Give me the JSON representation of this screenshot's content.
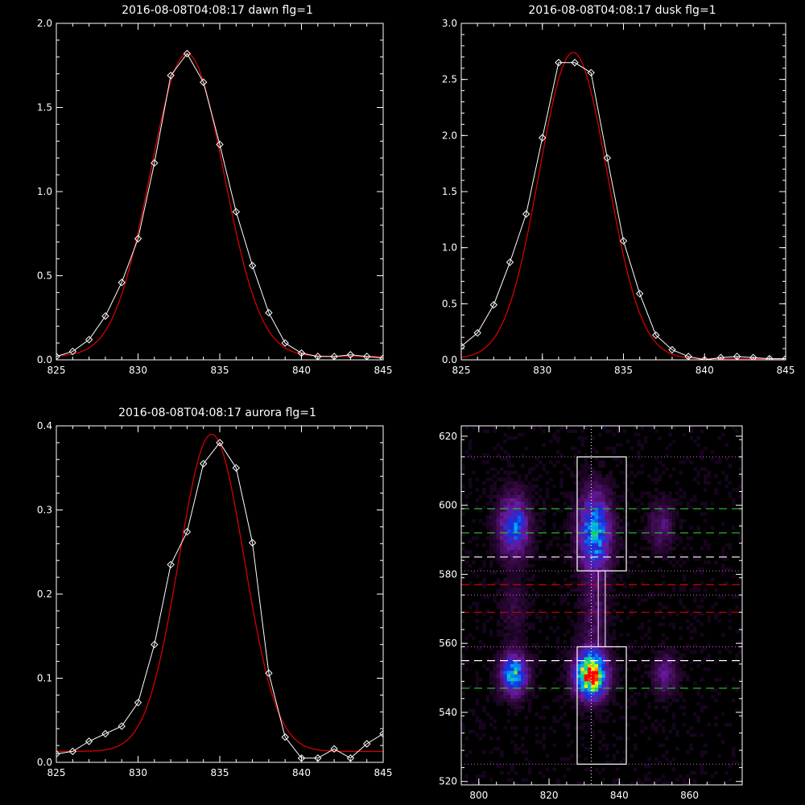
{
  "chart_data": [
    {
      "type": "line",
      "title": "2016-08-08T04:08:17 dawn flg=1",
      "xlim": [
        825,
        845
      ],
      "ylim": [
        0,
        2.0
      ],
      "xticks": [
        "825",
        "830",
        "835",
        "840",
        "845"
      ],
      "yticks": [
        "0.0",
        "0.5",
        "1.0",
        "1.5",
        "2.0"
      ],
      "series": [
        {
          "style": "measured",
          "color": "#ffffff",
          "marker": "diamond",
          "x": [
            825,
            826,
            827,
            828,
            829,
            830,
            831,
            832,
            833,
            834,
            835,
            836,
            837,
            838,
            839,
            840,
            841,
            842,
            843,
            844,
            845
          ],
          "y": [
            0.02,
            0.05,
            0.12,
            0.26,
            0.46,
            0.72,
            1.17,
            1.69,
            1.82,
            1.65,
            1.28,
            0.88,
            0.56,
            0.28,
            0.1,
            0.04,
            0.02,
            0.02,
            0.03,
            0.02,
            0.01
          ]
        },
        {
          "style": "fit",
          "color": "#d40000",
          "gauss": {
            "amp": 1.8,
            "center": 833.0,
            "sigma": 2.25,
            "base": 0.02
          }
        }
      ]
    },
    {
      "type": "line",
      "title": "2016-08-08T04:08:17 dusk flg=1",
      "xlim": [
        825,
        845
      ],
      "ylim": [
        0,
        3.0
      ],
      "xticks": [
        "825",
        "830",
        "835",
        "840",
        "845"
      ],
      "yticks": [
        "0.0",
        "0.5",
        "1.0",
        "1.5",
        "2.0",
        "2.5",
        "3.0"
      ],
      "series": [
        {
          "style": "measured",
          "color": "#ffffff",
          "marker": "diamond",
          "x": [
            825,
            826,
            827,
            828,
            829,
            830,
            831,
            832,
            833,
            834,
            835,
            836,
            837,
            838,
            839,
            840,
            841,
            842,
            843,
            844,
            845
          ],
          "y": [
            0.12,
            0.24,
            0.49,
            0.87,
            1.3,
            1.98,
            2.65,
            2.65,
            2.56,
            1.8,
            1.06,
            0.59,
            0.22,
            0.09,
            0.03,
            0.0,
            0.02,
            0.03,
            0.02,
            0.01,
            0.01
          ]
        },
        {
          "style": "fit",
          "color": "#d40000",
          "gauss": {
            "amp": 2.73,
            "center": 831.9,
            "sigma": 2.1,
            "base": 0.01
          }
        }
      ]
    },
    {
      "type": "line",
      "title": "2016-08-08T04:08:17 aurora flg=1",
      "xlim": [
        825,
        845
      ],
      "ylim": [
        0,
        0.4
      ],
      "xticks": [
        "825",
        "830",
        "835",
        "840",
        "845"
      ],
      "yticks": [
        "0.0",
        "0.1",
        "0.2",
        "0.3",
        "0.4"
      ],
      "series": [
        {
          "style": "measured",
          "color": "#ffffff",
          "marker": "diamond",
          "x": [
            825,
            826,
            827,
            828,
            829,
            830,
            831,
            832,
            833,
            834,
            835,
            836,
            837,
            838,
            839,
            840,
            841,
            842,
            843,
            844,
            845
          ],
          "y": [
            0.01,
            0.013,
            0.025,
            0.034,
            0.043,
            0.071,
            0.14,
            0.235,
            0.274,
            0.355,
            0.38,
            0.35,
            0.261,
            0.106,
            0.03,
            0.005,
            0.005,
            0.016,
            0.005,
            0.022,
            0.034
          ]
        },
        {
          "style": "fit",
          "color": "#d40000",
          "gauss": {
            "amp": 0.377,
            "center": 834.5,
            "sigma": 2.0,
            "base": 0.013
          }
        }
      ]
    },
    {
      "type": "heatmap",
      "title": "",
      "xlim": [
        795,
        875
      ],
      "ylim": [
        519,
        623
      ],
      "xticks": [
        "800",
        "820",
        "840",
        "860"
      ],
      "yticks": [
        "520",
        "540",
        "560",
        "580",
        "600",
        "620"
      ],
      "colormap": [
        "#000000",
        "#3a0a4a",
        "#6a1aa0",
        "#1530e0",
        "#00a8ff",
        "#22e060",
        "#ffff00",
        "#ff0000"
      ],
      "blobs": [
        {
          "x": 810,
          "y": 594,
          "sx": 3.0,
          "sy": 6.0,
          "amp": 0.45
        },
        {
          "x": 833,
          "y": 592,
          "sx": 3.2,
          "sy": 8.0,
          "amp": 0.55
        },
        {
          "x": 810,
          "y": 551,
          "sx": 2.6,
          "sy": 4.0,
          "amp": 0.6
        },
        {
          "x": 832,
          "y": 551,
          "sx": 3.0,
          "sy": 4.5,
          "amp": 1.0
        },
        {
          "x": 852,
          "y": 594,
          "sx": 2.5,
          "sy": 5.0,
          "amp": 0.18
        },
        {
          "x": 853,
          "y": 551,
          "sx": 2.5,
          "sy": 4.0,
          "amp": 0.22
        },
        {
          "x": 833,
          "y": 568,
          "sx": 2.5,
          "sy": 6.0,
          "amp": 0.15
        },
        {
          "x": 810,
          "y": 570,
          "sx": 2.5,
          "sy": 6.0,
          "amp": 0.1
        }
      ],
      "dotted_vertical_x": 832,
      "dotted_horizontal_y": [
        614,
        581,
        574,
        559,
        525
      ],
      "dashed_lines": [
        {
          "y": 599,
          "color": "#22cc22"
        },
        {
          "y": 592,
          "color": "#22cc22"
        },
        {
          "y": 585,
          "color": "#ffffff"
        },
        {
          "y": 577,
          "color": "#d40000"
        },
        {
          "y": 569,
          "color": "#d40000"
        },
        {
          "y": 555,
          "color": "#ffffff"
        },
        {
          "y": 547,
          "color": "#22cc22"
        }
      ],
      "boxes": [
        {
          "x0": 828,
          "x1": 842,
          "y0": 581,
          "y1": 614
        },
        {
          "x0": 828,
          "x1": 842,
          "y0": 525,
          "y1": 559
        }
      ],
      "connector": {
        "x0": 834,
        "x1": 836,
        "y0": 559,
        "y1": 581
      }
    }
  ]
}
